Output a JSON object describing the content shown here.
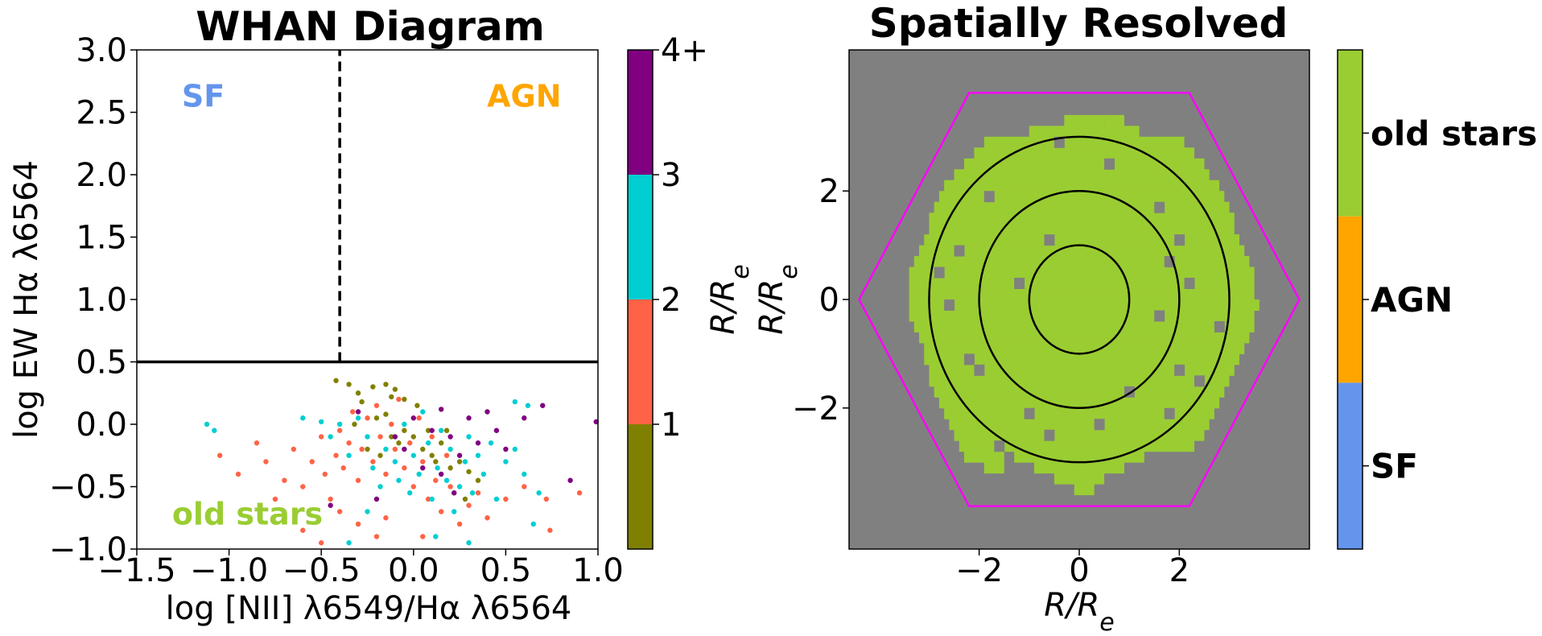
{
  "chart_data": [
    {
      "type": "scatter",
      "title": "WHAN Diagram",
      "xlabel": "log [NII] λ6549/Hα λ6564",
      "ylabel": "log EW Hα λ6564",
      "xlim": [
        -1.5,
        1.0
      ],
      "ylim": [
        -1.0,
        3.0
      ],
      "xticks": [
        "−1.5",
        "−1.0",
        "−0.5",
        "0.0",
        "0.5",
        "1.0"
      ],
      "yticks": [
        "−1.0",
        "−0.5",
        "0.0",
        "0.5",
        "1.0",
        "1.5",
        "2.0",
        "2.5",
        "3.0"
      ],
      "region_labels": [
        {
          "text": "SF",
          "color": "#6495ED",
          "x": -1.14,
          "y": 2.63
        },
        {
          "text": "AGN",
          "color": "#FFA500",
          "x": 0.6,
          "y": 2.63
        },
        {
          "text": "old stars",
          "color": "#9ACD32",
          "x": -0.9,
          "y": -0.72
        }
      ],
      "lines": [
        {
          "kind": "vertical",
          "style": "dashed",
          "x": -0.4,
          "y_from": 0.5,
          "y_to": 3.0
        },
        {
          "kind": "horizontal",
          "style": "solid",
          "y": 0.5
        }
      ],
      "colorbar": {
        "label": "R/R_e",
        "tick_labels": [
          "1",
          "2",
          "3",
          "4+"
        ],
        "colors": [
          "#808000",
          "#FF6347",
          "#00CED1",
          "#800080"
        ]
      },
      "series": [
        {
          "range": "0–1",
          "color": "#808000",
          "points": [
            [
              -0.42,
              0.35
            ],
            [
              -0.35,
              0.32
            ],
            [
              -0.3,
              0.25
            ],
            [
              -0.28,
              0.18
            ],
            [
              -0.22,
              0.3
            ],
            [
              -0.15,
              0.32
            ],
            [
              -0.12,
              0.22
            ],
            [
              -0.1,
              0.28
            ],
            [
              -0.05,
              0.2
            ],
            [
              0.02,
              0.15
            ],
            [
              -0.2,
              0.05
            ],
            [
              -0.15,
              0.08
            ],
            [
              -0.12,
              -0.1
            ],
            [
              -0.08,
              -0.15
            ],
            [
              -0.05,
              -0.05
            ],
            [
              0.0,
              -0.1
            ],
            [
              0.05,
              -0.2
            ],
            [
              0.1,
              -0.25
            ],
            [
              0.12,
              -0.3
            ],
            [
              0.15,
              -0.15
            ],
            [
              0.2,
              -0.35
            ],
            [
              0.25,
              -0.3
            ],
            [
              0.3,
              -0.38
            ],
            [
              0.22,
              -0.55
            ],
            [
              0.28,
              -0.6
            ],
            [
              -0.25,
              -0.2
            ],
            [
              -0.18,
              -0.25
            ],
            [
              0.08,
              -0.05
            ],
            [
              0.18,
              -0.05
            ],
            [
              -0.32,
              0.0
            ],
            [
              0.35,
              -0.45
            ]
          ]
        },
        {
          "range": "1–2",
          "color": "#FF6347",
          "points": [
            [
              -1.05,
              -0.25
            ],
            [
              -0.95,
              -0.4
            ],
            [
              -0.85,
              -0.15
            ],
            [
              -0.8,
              -0.3
            ],
            [
              -0.75,
              -0.6
            ],
            [
              -0.7,
              -0.45
            ],
            [
              -0.65,
              -0.2
            ],
            [
              -0.6,
              -0.5
            ],
            [
              -0.55,
              -0.3
            ],
            [
              -0.5,
              -0.1
            ],
            [
              -0.48,
              -0.4
            ],
            [
              -0.45,
              -0.6
            ],
            [
              -0.42,
              -0.25
            ],
            [
              -0.4,
              -0.05
            ],
            [
              -0.38,
              -0.35
            ],
            [
              -0.35,
              -0.15
            ],
            [
              -0.33,
              0.1
            ],
            [
              -0.3,
              -0.45
            ],
            [
              -0.28,
              -0.2
            ],
            [
              -0.25,
              0.05
            ],
            [
              -0.22,
              -0.3
            ],
            [
              -0.2,
              0.15
            ],
            [
              -0.18,
              -0.1
            ],
            [
              -0.15,
              -0.4
            ],
            [
              -0.12,
              0.0
            ],
            [
              -0.1,
              -0.2
            ],
            [
              -0.08,
              0.2
            ],
            [
              -0.05,
              -0.35
            ],
            [
              -0.02,
              -0.15
            ],
            [
              0.0,
              -0.5
            ],
            [
              0.03,
              0.05
            ],
            [
              0.05,
              -0.3
            ],
            [
              0.08,
              -0.6
            ],
            [
              0.1,
              -0.1
            ],
            [
              0.12,
              -0.45
            ],
            [
              0.15,
              -0.7
            ],
            [
              0.18,
              -0.25
            ],
            [
              0.2,
              -0.5
            ],
            [
              0.25,
              -0.8
            ],
            [
              0.3,
              -0.65
            ],
            [
              0.35,
              -0.55
            ],
            [
              0.4,
              -0.75
            ],
            [
              0.5,
              -0.6
            ],
            [
              0.6,
              -0.5
            ],
            [
              0.72,
              -0.6
            ],
            [
              0.74,
              -0.85
            ],
            [
              0.9,
              -0.55
            ],
            [
              -0.6,
              -0.85
            ],
            [
              -0.5,
              -0.95
            ],
            [
              -0.3,
              -0.8
            ],
            [
              -0.2,
              -0.9
            ],
            [
              0.05,
              -0.9
            ],
            [
              -0.15,
              -0.75
            ],
            [
              -0.4,
              -0.7
            ]
          ]
        },
        {
          "range": "2–3",
          "color": "#00CED1",
          "points": [
            [
              -1.12,
              0.0
            ],
            [
              -1.08,
              -0.05
            ],
            [
              -0.6,
              0.05
            ],
            [
              -0.5,
              0.02
            ],
            [
              -0.45,
              -0.1
            ],
            [
              -0.4,
              0.0
            ],
            [
              -0.35,
              -0.25
            ],
            [
              -0.3,
              0.05
            ],
            [
              -0.25,
              -0.1
            ],
            [
              -0.22,
              -0.35
            ],
            [
              -0.18,
              -0.5
            ],
            [
              -0.15,
              -0.2
            ],
            [
              -0.1,
              -0.3
            ],
            [
              -0.08,
              -0.45
            ],
            [
              -0.05,
              0.0
            ],
            [
              -0.02,
              -0.55
            ],
            [
              0.0,
              -0.25
            ],
            [
              0.03,
              -0.4
            ],
            [
              0.05,
              0.1
            ],
            [
              0.08,
              -0.15
            ],
            [
              0.1,
              -0.6
            ],
            [
              0.13,
              -0.35
            ],
            [
              0.15,
              -0.05
            ],
            [
              0.18,
              -0.45
            ],
            [
              0.2,
              -0.2
            ],
            [
              0.22,
              -0.7
            ],
            [
              0.25,
              -0.5
            ],
            [
              0.28,
              -0.3
            ],
            [
              0.3,
              -0.1
            ],
            [
              0.32,
              -0.55
            ],
            [
              0.35,
              -0.25
            ],
            [
              0.38,
              -0.4
            ],
            [
              0.42,
              -0.15
            ],
            [
              0.45,
              -0.6
            ],
            [
              0.5,
              -0.3
            ],
            [
              0.55,
              -0.2
            ],
            [
              0.6,
              -0.4
            ],
            [
              0.65,
              -0.8
            ],
            [
              0.68,
              -0.55
            ],
            [
              0.55,
              0.18
            ],
            [
              0.62,
              0.15
            ],
            [
              0.12,
              -0.9
            ],
            [
              0.3,
              -0.95
            ],
            [
              -0.35,
              -0.95
            ],
            [
              -0.25,
              -0.7
            ]
          ]
        },
        {
          "range": "3+",
          "color": "#800080",
          "points": [
            [
              -0.1,
              -0.1
            ],
            [
              -0.05,
              -0.2
            ],
            [
              0.05,
              -0.35
            ],
            [
              0.1,
              -0.05
            ],
            [
              0.15,
              -0.4
            ],
            [
              0.2,
              -0.1
            ],
            [
              0.25,
              -0.25
            ],
            [
              0.3,
              0.05
            ],
            [
              0.35,
              -0.15
            ],
            [
              0.4,
              0.1
            ],
            [
              0.45,
              -0.05
            ],
            [
              0.5,
              -0.2
            ],
            [
              0.6,
              0.05
            ],
            [
              0.7,
              0.15
            ],
            [
              0.85,
              -0.45
            ],
            [
              0.99,
              0.02
            ],
            [
              -0.45,
              -0.65
            ],
            [
              -0.2,
              -0.6
            ],
            [
              0.0,
              0.05
            ],
            [
              0.22,
              -0.55
            ],
            [
              -0.3,
              0.1
            ],
            [
              0.15,
              0.12
            ]
          ]
        }
      ]
    },
    {
      "type": "heatmap",
      "title": "Spatially Resolved",
      "xlabel": "R/R_e",
      "ylabel": "R/R_e",
      "xlim": [
        -4.6,
        4.6
      ],
      "ylim": [
        -4.6,
        4.6
      ],
      "xticks": [
        "−2",
        "0",
        "2"
      ],
      "yticks": [
        "−2",
        "0",
        "2"
      ],
      "background_color": "#808080",
      "fill_color": "#9ACD32",
      "hexagon_color": "#FF00FF",
      "hexagon_radius": 4.4,
      "ellipse_radii": [
        1.0,
        2.0,
        3.0
      ],
      "ellipse_axis_ratio": 1.0,
      "colorbar": {
        "categories": [
          "SF",
          "AGN",
          "old stars"
        ],
        "colors": [
          "#6495ED",
          "#FFA500",
          "#9ACD32"
        ]
      },
      "masked_region_rows": [
        {
          "y": 3.3,
          "x_ranges": [
            [
              -0.2,
              0.4
            ],
            [
              0.6,
              0.8
            ]
          ]
        },
        {
          "y": 3.1,
          "x_ranges": [
            [
              -0.9,
              1.1
            ]
          ]
        },
        {
          "y": 2.9,
          "x_ranges": [
            [
              -1.8,
              2.0
            ]
          ]
        },
        {
          "y": 2.7,
          "x_ranges": [
            [
              -2.0,
              2.2
            ]
          ]
        },
        {
          "y": 2.5,
          "x_ranges": [
            [
              -2.2,
              2.4
            ]
          ]
        },
        {
          "y": 2.3,
          "x_ranges": [
            [
              -2.4,
              2.5
            ]
          ]
        },
        {
          "y": 2.1,
          "x_ranges": [
            [
              -2.6,
              2.7
            ]
          ]
        },
        {
          "y": 1.9,
          "x_ranges": [
            [
              -2.7,
              2.8
            ]
          ]
        },
        {
          "y": 1.7,
          "x_ranges": [
            [
              -2.8,
              2.9
            ]
          ]
        },
        {
          "y": 1.5,
          "x_ranges": [
            [
              -2.9,
              3.0
            ]
          ]
        },
        {
          "y": 1.3,
          "x_ranges": [
            [
              -2.9,
              3.0
            ]
          ]
        },
        {
          "y": 1.1,
          "x_ranges": [
            [
              -3.0,
              3.1
            ]
          ]
        },
        {
          "y": 0.9,
          "x_ranges": [
            [
              -3.1,
              3.2
            ]
          ]
        },
        {
          "y": 0.7,
          "x_ranges": [
            [
              -3.2,
              3.3
            ]
          ]
        },
        {
          "y": 0.5,
          "x_ranges": [
            [
              -3.3,
              3.4
            ]
          ]
        },
        {
          "y": 0.3,
          "x_ranges": [
            [
              -3.3,
              3.4
            ]
          ]
        },
        {
          "y": 0.1,
          "x_ranges": [
            [
              -3.3,
              3.4
            ]
          ]
        },
        {
          "y": -0.1,
          "x_ranges": [
            [
              -3.3,
              3.5
            ]
          ]
        },
        {
          "y": -0.3,
          "x_ranges": [
            [
              -3.3,
              3.4
            ]
          ]
        },
        {
          "y": -0.5,
          "x_ranges": [
            [
              -3.2,
              3.4
            ]
          ]
        },
        {
          "y": -0.7,
          "x_ranges": [
            [
              -3.1,
              3.3
            ]
          ]
        },
        {
          "y": -0.9,
          "x_ranges": [
            [
              -3.0,
              3.2
            ]
          ]
        },
        {
          "y": -1.1,
          "x_ranges": [
            [
              -3.0,
              3.1
            ]
          ]
        },
        {
          "y": -1.3,
          "x_ranges": [
            [
              -2.9,
              3.0
            ]
          ]
        },
        {
          "y": -1.5,
          "x_ranges": [
            [
              -2.9,
              2.9
            ]
          ]
        },
        {
          "y": -1.7,
          "x_ranges": [
            [
              -2.8,
              2.8
            ]
          ]
        },
        {
          "y": -1.9,
          "x_ranges": [
            [
              -2.7,
              2.7
            ]
          ]
        },
        {
          "y": -2.1,
          "x_ranges": [
            [
              -2.6,
              2.6
            ]
          ]
        },
        {
          "y": -2.3,
          "x_ranges": [
            [
              -2.5,
              2.5
            ]
          ]
        },
        {
          "y": -2.5,
          "x_ranges": [
            [
              -2.4,
              2.4
            ]
          ]
        },
        {
          "y": -2.7,
          "x_ranges": [
            [
              -2.3,
              2.2
            ]
          ]
        },
        {
          "y": -2.9,
          "x_ranges": [
            [
              -2.2,
              -1.6
            ],
            [
              -1.2,
              1.2
            ]
          ]
        },
        {
          "y": -3.1,
          "x_ranges": [
            [
              -1.8,
              -1.6
            ],
            [
              -0.8,
              0.8
            ]
          ]
        },
        {
          "y": -3.3,
          "x_ranges": [
            [
              -0.4,
              0.4
            ]
          ]
        },
        {
          "y": -3.5,
          "x_ranges": [
            [
              0.0,
              0.2
            ]
          ]
        }
      ],
      "gaps": [
        [
          -0.4,
          2.9
        ],
        [
          0.6,
          2.5
        ],
        [
          -1.8,
          1.9
        ],
        [
          1.6,
          1.7
        ],
        [
          -0.6,
          1.1
        ],
        [
          2.0,
          1.1
        ],
        [
          -2.4,
          0.9
        ],
        [
          -2.8,
          0.5
        ],
        [
          1.8,
          0.7
        ],
        [
          2.2,
          0.3
        ],
        [
          -2.6,
          -0.1
        ],
        [
          1.6,
          -0.3
        ],
        [
          2.8,
          -0.5
        ],
        [
          -2.2,
          -1.1
        ],
        [
          -2.0,
          -1.3
        ],
        [
          2.0,
          -1.3
        ],
        [
          1.0,
          -1.7
        ],
        [
          -1.0,
          -2.1
        ],
        [
          1.8,
          -2.1
        ],
        [
          -1.6,
          -2.7
        ],
        [
          0.4,
          -2.3
        ],
        [
          -0.6,
          -2.5
        ],
        [
          2.4,
          -1.5
        ],
        [
          -1.2,
          0.3
        ]
      ]
    }
  ]
}
